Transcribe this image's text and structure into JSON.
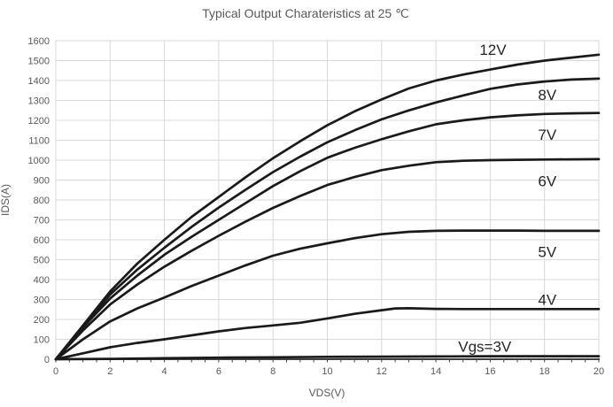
{
  "chart_data": {
    "type": "line",
    "title": "Typical Output Charateristics at 25 ℃",
    "xlabel": "VDS(V)",
    "ylabel": "IDS(A)",
    "xlim": [
      0,
      20
    ],
    "ylim": [
      0,
      1600
    ],
    "xticks": [
      0,
      2,
      4,
      6,
      8,
      10,
      12,
      14,
      16,
      18,
      20
    ],
    "x_minor_tick_step": 0.5,
    "yticks": [
      0,
      100,
      200,
      300,
      400,
      500,
      600,
      700,
      800,
      900,
      1000,
      1100,
      1200,
      1300,
      1400,
      1500,
      1600
    ],
    "grid": true,
    "legend_position": "inline-curve-labels",
    "series": [
      {
        "name": "Vgs=12V",
        "label": "12V",
        "label_at": [
          16.1,
          1555
        ],
        "points": [
          [
            0,
            0
          ],
          [
            1,
            170
          ],
          [
            2,
            340
          ],
          [
            3,
            480
          ],
          [
            4,
            600
          ],
          [
            5,
            715
          ],
          [
            6,
            815
          ],
          [
            7,
            915
          ],
          [
            8,
            1010
          ],
          [
            9,
            1095
          ],
          [
            10,
            1175
          ],
          [
            11,
            1245
          ],
          [
            12,
            1305
          ],
          [
            13,
            1360
          ],
          [
            14,
            1400
          ],
          [
            15,
            1430
          ],
          [
            16,
            1455
          ],
          [
            17,
            1480
          ],
          [
            18,
            1500
          ],
          [
            19,
            1515
          ],
          [
            20,
            1530
          ]
        ]
      },
      {
        "name": "Vgs=8V",
        "label": "8V",
        "label_at": [
          18.1,
          1330
        ],
        "points": [
          [
            0,
            0
          ],
          [
            1,
            165
          ],
          [
            2,
            325
          ],
          [
            3,
            450
          ],
          [
            4,
            560
          ],
          [
            5,
            665
          ],
          [
            6,
            762
          ],
          [
            7,
            852
          ],
          [
            8,
            940
          ],
          [
            9,
            1018
          ],
          [
            10,
            1090
          ],
          [
            11,
            1150
          ],
          [
            12,
            1205
          ],
          [
            13,
            1250
          ],
          [
            14,
            1290
          ],
          [
            15,
            1325
          ],
          [
            16,
            1358
          ],
          [
            17,
            1380
          ],
          [
            18,
            1395
          ],
          [
            19,
            1405
          ],
          [
            20,
            1410
          ]
        ]
      },
      {
        "name": "Vgs=7V",
        "label": "7V",
        "label_at": [
          18.1,
          1130
        ],
        "points": [
          [
            0,
            0
          ],
          [
            1,
            160
          ],
          [
            2,
            305
          ],
          [
            3,
            420
          ],
          [
            4,
            525
          ],
          [
            5,
            615
          ],
          [
            6,
            700
          ],
          [
            7,
            785
          ],
          [
            8,
            870
          ],
          [
            9,
            945
          ],
          [
            10,
            1012
          ],
          [
            11,
            1062
          ],
          [
            12,
            1105
          ],
          [
            13,
            1145
          ],
          [
            14,
            1180
          ],
          [
            15,
            1200
          ],
          [
            16,
            1215
          ],
          [
            17,
            1225
          ],
          [
            18,
            1232
          ],
          [
            19,
            1235
          ],
          [
            20,
            1237
          ]
        ]
      },
      {
        "name": "Vgs=6V",
        "label": "6V",
        "label_at": [
          18.1,
          895
        ],
        "points": [
          [
            0,
            0
          ],
          [
            1,
            145
          ],
          [
            2,
            275
          ],
          [
            3,
            375
          ],
          [
            4,
            465
          ],
          [
            5,
            545
          ],
          [
            6,
            620
          ],
          [
            7,
            692
          ],
          [
            8,
            760
          ],
          [
            9,
            820
          ],
          [
            10,
            875
          ],
          [
            11,
            915
          ],
          [
            12,
            950
          ],
          [
            13,
            972
          ],
          [
            14,
            990
          ],
          [
            15,
            997
          ],
          [
            16,
            1000
          ],
          [
            17,
            1002
          ],
          [
            18,
            1003
          ],
          [
            19,
            1004
          ],
          [
            20,
            1005
          ]
        ]
      },
      {
        "name": "Vgs=5V",
        "label": "5V",
        "label_at": [
          18.1,
          540
        ],
        "points": [
          [
            0,
            0
          ],
          [
            1,
            100
          ],
          [
            2,
            190
          ],
          [
            3,
            255
          ],
          [
            4,
            310
          ],
          [
            5,
            368
          ],
          [
            6,
            420
          ],
          [
            7,
            472
          ],
          [
            8,
            520
          ],
          [
            9,
            555
          ],
          [
            10,
            582
          ],
          [
            11,
            608
          ],
          [
            12,
            628
          ],
          [
            13,
            640
          ],
          [
            14,
            645
          ],
          [
            15,
            646
          ],
          [
            16,
            646
          ],
          [
            17,
            646
          ],
          [
            18,
            645
          ],
          [
            19,
            645
          ],
          [
            20,
            645
          ]
        ]
      },
      {
        "name": "Vgs=4V",
        "label": "4V",
        "label_at": [
          18.1,
          300
        ],
        "points": [
          [
            0,
            0
          ],
          [
            1,
            30
          ],
          [
            2,
            60
          ],
          [
            3,
            82
          ],
          [
            4,
            100
          ],
          [
            5,
            120
          ],
          [
            6,
            140
          ],
          [
            7,
            157
          ],
          [
            8,
            170
          ],
          [
            9,
            183
          ],
          [
            10,
            205
          ],
          [
            11,
            228
          ],
          [
            12,
            246
          ],
          [
            12.5,
            255
          ],
          [
            13,
            256
          ],
          [
            14,
            253
          ],
          [
            15,
            252
          ],
          [
            16,
            252
          ],
          [
            17,
            252
          ],
          [
            18,
            252
          ],
          [
            19,
            252
          ],
          [
            20,
            252
          ]
        ]
      },
      {
        "name": "Vgs=3V",
        "label": "Vgs=3V",
        "label_at": [
          15.8,
          65
        ],
        "points": [
          [
            0,
            0
          ],
          [
            2,
            2
          ],
          [
            4,
            5
          ],
          [
            6,
            8
          ],
          [
            8,
            10
          ],
          [
            10,
            12
          ],
          [
            12,
            13
          ],
          [
            14,
            14
          ],
          [
            16,
            15
          ],
          [
            18,
            15
          ],
          [
            20,
            15
          ]
        ]
      }
    ]
  },
  "colors": {
    "background": "#ffffff",
    "curve": "#1a1a1a",
    "grid": "#d9d9d9",
    "plot_border": "#d9d9d9",
    "x_axis_line": "#404040",
    "axis_text": "#595959",
    "title_text": "#595959",
    "curve_label_text": "#262626"
  }
}
